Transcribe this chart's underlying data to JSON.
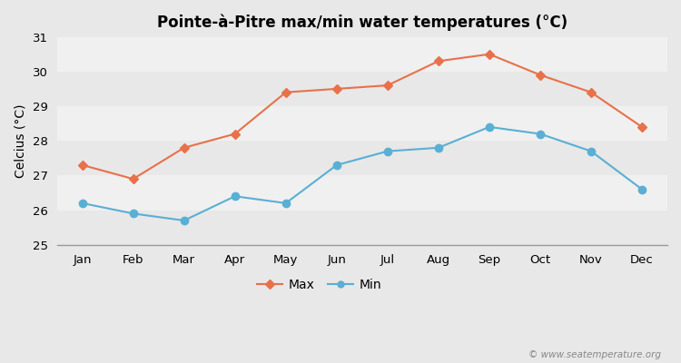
{
  "title": "Pointe-à-Pitre max/min water temperatures (°C)",
  "ylabel": "Celcius (°C)",
  "months": [
    "Jan",
    "Feb",
    "Mar",
    "Apr",
    "May",
    "Jun",
    "Jul",
    "Aug",
    "Sep",
    "Oct",
    "Nov",
    "Dec"
  ],
  "max_temps": [
    27.3,
    26.9,
    27.8,
    28.2,
    29.4,
    29.5,
    29.6,
    30.3,
    30.5,
    29.9,
    29.4,
    28.4
  ],
  "min_temps": [
    26.2,
    25.9,
    25.7,
    26.4,
    26.2,
    27.3,
    27.7,
    27.8,
    28.4,
    28.2,
    27.7,
    26.6
  ],
  "max_color": "#e8714a",
  "min_color": "#5aafd4",
  "bg_color": "#e8e8e8",
  "plot_bg_color": "#f0f0f0",
  "band_colors": [
    "#e8e8e8",
    "#f0f0f0"
  ],
  "ylim": [
    25,
    31
  ],
  "yticks": [
    25,
    26,
    27,
    28,
    29,
    30,
    31
  ],
  "watermark": "© www.seatemperature.org",
  "legend_labels": [
    "Max",
    "Min"
  ]
}
